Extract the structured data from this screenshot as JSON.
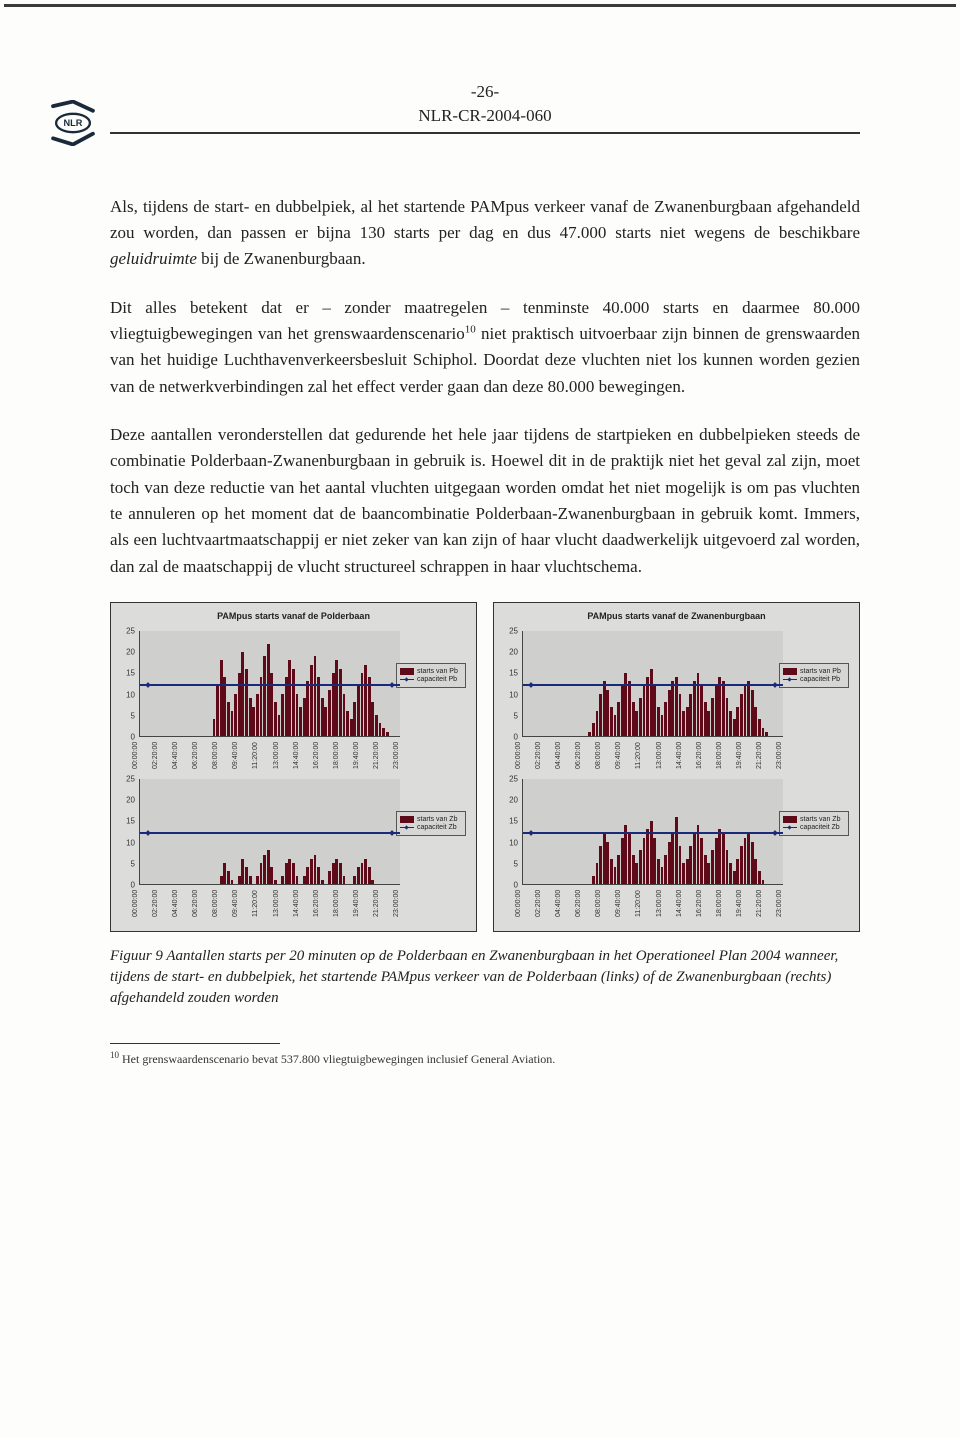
{
  "header": {
    "page_number": "-26-",
    "doc_id": "NLR-CR-2004-060"
  },
  "logo": {
    "label": "NLR"
  },
  "paragraphs": {
    "p1_a": "Als, tijdens de start- en dubbelpiek, al het startende PAMpus verkeer vanaf de Zwanenburgbaan afgehandeld zou worden, dan passen er bijna 130 starts per dag en dus 47.000 starts niet wegens de beschikbare ",
    "p1_i": "geluidruimte",
    "p1_b": " bij de Zwanenburgbaan.",
    "p2": "Dit alles betekent dat er – zonder maatregelen – tenminste 40.000 starts en daarmee 80.000 vliegtuigbewegingen van het grenswaardenscenario",
    "p2_fn": "10",
    "p2_b": " niet praktisch uitvoerbaar zijn binnen de grenswaarden van het huidige Luchthavenverkeersbesluit Schiphol. Doordat deze vluchten niet los kunnen worden gezien van de netwerkverbindingen zal het effect verder gaan dan deze 80.000 bewegingen.",
    "p3": "Deze aantallen veronderstellen dat gedurende het hele jaar tijdens de startpieken en dubbelpieken steeds de combinatie Polderbaan-Zwanenburgbaan in gebruik is. Hoewel dit in de praktijk niet het geval zal zijn, moet toch van deze reductie van het aantal vluchten uitgegaan worden omdat het niet mogelijk is om pas vluchten te annuleren op het moment dat de baancombinatie Polderbaan-Zwanenburgbaan in gebruik komt. Immers, als een luchtvaartmaatschappij er niet zeker van kan zijn of haar vlucht daadwerkelijk uitgevoerd zal worden, dan zal de maatschappij de vlucht structureel schrappen in haar vluchtschema."
  },
  "charts": {
    "ymax": 25,
    "ytick_step": 5,
    "capacity_value": 12,
    "x_labels": [
      "00:00:00",
      "02:20:00",
      "04:40:00",
      "06:20:00",
      "08:00:00",
      "09:40:00",
      "11:20:00",
      "13:00:00",
      "14:40:00",
      "16:20:00",
      "18:00:00",
      "19:40:00",
      "21:20:00",
      "23:00:00"
    ],
    "bar_color": "#5e0a18",
    "line_color": "#1a2a7a",
    "plot_bg": "#cfcfcd",
    "frame_bg": "#dcdcda",
    "panels": {
      "pb_top": {
        "title": "PAMpus starts vanaf de Polderbaan",
        "legend_bar": "starts van Pb",
        "legend_line": "capaciteit Pb",
        "values": [
          0,
          0,
          0,
          0,
          0,
          0,
          0,
          0,
          0,
          0,
          0,
          0,
          0,
          0,
          0,
          0,
          0,
          0,
          0,
          0,
          4,
          12,
          18,
          14,
          8,
          6,
          10,
          15,
          20,
          16,
          9,
          7,
          10,
          14,
          19,
          22,
          15,
          8,
          5,
          10,
          14,
          18,
          16,
          10,
          7,
          9,
          13,
          17,
          19,
          14,
          9,
          7,
          11,
          15,
          18,
          16,
          10,
          6,
          4,
          8,
          12,
          15,
          17,
          14,
          8,
          5,
          3,
          2,
          1,
          0,
          0,
          0
        ]
      },
      "zb_top": {
        "title": "PAMpus starts vanaf de Zwanenburgbaan",
        "legend_bar": "starts van Pb",
        "legend_line": "capaciteit Pb",
        "values": [
          0,
          0,
          0,
          0,
          0,
          0,
          0,
          0,
          0,
          0,
          0,
          0,
          0,
          0,
          0,
          0,
          0,
          0,
          1,
          3,
          6,
          10,
          13,
          11,
          7,
          5,
          8,
          12,
          15,
          13,
          8,
          6,
          9,
          12,
          14,
          16,
          12,
          7,
          5,
          8,
          11,
          13,
          14,
          10,
          6,
          7,
          10,
          13,
          15,
          12,
          8,
          6,
          9,
          12,
          14,
          13,
          9,
          6,
          4,
          7,
          10,
          12,
          13,
          11,
          7,
          4,
          2,
          1,
          0,
          0,
          0,
          0
        ]
      },
      "pb_bot": {
        "legend_bar": "starts van Zb",
        "legend_line": "capaciteit Zb",
        "values": [
          0,
          0,
          0,
          0,
          0,
          0,
          0,
          0,
          0,
          0,
          0,
          0,
          0,
          0,
          0,
          0,
          0,
          0,
          0,
          0,
          0,
          0,
          2,
          5,
          3,
          1,
          0,
          2,
          6,
          4,
          2,
          0,
          2,
          5,
          7,
          8,
          4,
          1,
          0,
          2,
          5,
          6,
          5,
          2,
          0,
          2,
          4,
          6,
          7,
          4,
          1,
          0,
          3,
          5,
          6,
          5,
          2,
          0,
          0,
          2,
          4,
          5,
          6,
          4,
          1,
          0,
          0,
          0,
          0,
          0,
          0,
          0
        ]
      },
      "zb_bot": {
        "legend_bar": "starts van Zb",
        "legend_line": "capaciteit Zb",
        "values": [
          0,
          0,
          0,
          0,
          0,
          0,
          0,
          0,
          0,
          0,
          0,
          0,
          0,
          0,
          0,
          0,
          0,
          0,
          0,
          2,
          5,
          9,
          12,
          10,
          6,
          4,
          7,
          11,
          14,
          12,
          7,
          5,
          8,
          11,
          13,
          15,
          11,
          6,
          4,
          7,
          10,
          12,
          16,
          9,
          5,
          6,
          9,
          12,
          14,
          11,
          7,
          5,
          8,
          11,
          13,
          12,
          8,
          5,
          3,
          6,
          9,
          11,
          12,
          10,
          6,
          3,
          1,
          0,
          0,
          0,
          0,
          0
        ]
      }
    }
  },
  "caption": {
    "text": "Figuur 9  Aantallen starts per 20 minuten op de Polderbaan en Zwanenburgbaan in het Operationeel Plan 2004 wanneer, tijdens de start- en dubbelpiek, het startende PAMpus verkeer van de Polderbaan (links) of de Zwanenburgbaan (rechts) afgehandeld zouden worden"
  },
  "footnote": {
    "num": "10",
    "text": " Het grenswaardenscenario bevat 537.800 vliegtuigbewegingen inclusief General Aviation."
  }
}
